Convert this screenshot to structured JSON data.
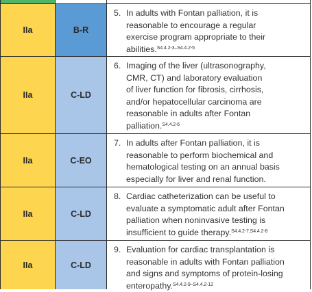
{
  "rows": [
    {
      "cor": "IIa",
      "loe": "B-R",
      "num": "5.",
      "text": "In adults with Fontan palliation, it is\nreasonable to encourage a regular\nexercise program appropriate to their\nabilities.",
      "ref": "S4.4.2-3–S4.4.2-5"
    },
    {
      "cor": "IIa",
      "loe": "C-LD",
      "num": "6.",
      "text": "Imaging of the liver (ultrasonography,\nCMR, CT) and laboratory evaluation\nof liver function for fibrosis, cirrhosis,\nand/or hepatocellular carcinoma are\nreasonable in adults after Fontan\npalliation.",
      "ref": "S4.4.2-6"
    },
    {
      "cor": "IIa",
      "loe": "C-EO",
      "num": "7.",
      "text": "In adults after Fontan palliation, it is\nreasonable to perform biochemical and\nhematological testing on an annual basis\nespecially for liver and renal function.",
      "ref": ""
    },
    {
      "cor": "IIa",
      "loe": "C-LD",
      "num": "8.",
      "text": "Cardiac catheterization can be useful to\nevaluate a symptomatic adult after Fontan\npalliation when noninvasive testing is\ninsufficient to guide therapy.",
      "ref": "S4.4.2-7,S4.4.2-8"
    },
    {
      "cor": "IIa",
      "loe": "C-LD",
      "num": "9.",
      "text": "Evaluation for cardiac transplantation is\nreasonable in adults with Fontan palliation\nand signs and symptoms of protein-losing\nenteropathy.",
      "ref": "S4.4.2-9–S4.4.2-12"
    }
  ],
  "colors": {
    "cor_bg": "#fdd54f",
    "loe_br_bg": "#5b9bd5",
    "loe_c_bg": "#a9c6e8",
    "header_green": "#4fb36a"
  }
}
